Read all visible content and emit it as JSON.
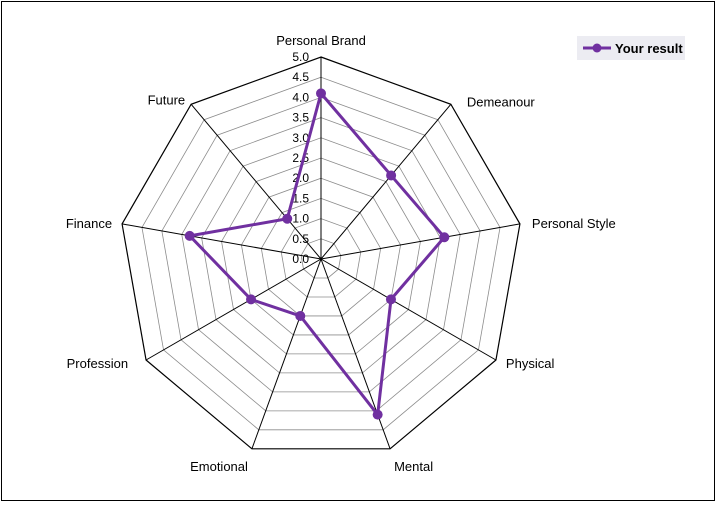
{
  "chart_data": {
    "type": "radar",
    "categories": [
      "Personal Brand",
      "Demeanour",
      "Personal Style",
      "Physical",
      "Mental",
      "Emotional",
      "Profession",
      "Finance",
      "Future"
    ],
    "series": [
      {
        "name": "Your result",
        "values": [
          4.1,
          2.7,
          3.1,
          2.0,
          4.1,
          1.5,
          2.0,
          3.3,
          1.3
        ]
      }
    ],
    "rlim": [
      0,
      5
    ],
    "ticks": [
      "0.0",
      "0.5",
      "1.0",
      "1.5",
      "2.0",
      "2.5",
      "3.0",
      "3.5",
      "4.0",
      "4.5",
      "5.0"
    ],
    "grid": true,
    "legend_position": "top-right",
    "series_color": "#7030a0"
  }
}
